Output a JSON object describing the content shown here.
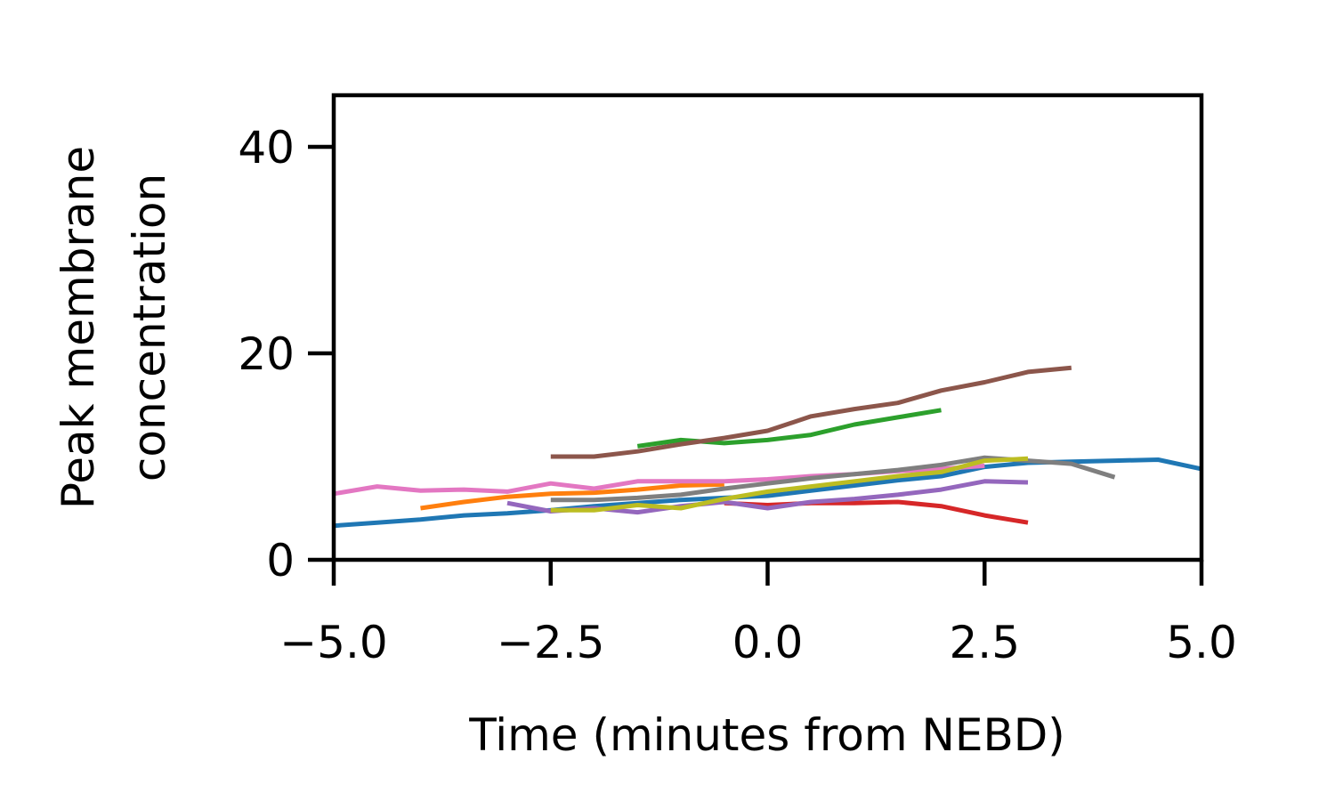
{
  "chart_data": {
    "type": "line",
    "title": "",
    "xlabel": "Time (minutes from NEBD)",
    "ylabel_lines": [
      "Peak membrane",
      "concentration"
    ],
    "xlim": [
      -5,
      5
    ],
    "ylim": [
      0,
      45
    ],
    "xticks": [
      -5,
      -2.5,
      0,
      2.5,
      5
    ],
    "xtick_labels": [
      "−5.0",
      "−2.5",
      "0.0",
      "2.5",
      "5.0"
    ],
    "yticks": [
      0,
      20,
      40
    ],
    "ytick_labels": [
      "0",
      "20",
      "40"
    ],
    "grid": false,
    "legend": "none",
    "series": [
      {
        "color": "#1f77b4",
        "x": [
          -5,
          -4.5,
          -4,
          -3.5,
          -3,
          -2.5,
          -2,
          -1.5,
          -1,
          -0.5,
          0,
          0.5,
          1,
          1.5,
          2,
          2.5,
          3,
          3.5,
          4,
          4.5,
          5
        ],
        "y": [
          3.3,
          3.6,
          3.9,
          4.3,
          4.5,
          4.8,
          5.2,
          5.5,
          5.8,
          6.0,
          6.2,
          6.7,
          7.2,
          7.7,
          8.1,
          9.0,
          9.4,
          9.5,
          9.6,
          9.7,
          8.8
        ]
      },
      {
        "color": "#ff7f0e",
        "x": [
          -4,
          -3.5,
          -3,
          -2.5,
          -2,
          -1.5,
          -1,
          -0.5
        ],
        "y": [
          5.0,
          5.6,
          6.1,
          6.4,
          6.5,
          6.8,
          7.2,
          7.3
        ]
      },
      {
        "color": "#2ca02c",
        "x": [
          -1.5,
          -1,
          -0.5,
          0,
          0.5,
          1,
          1.5,
          2
        ],
        "y": [
          11.0,
          11.6,
          11.3,
          11.6,
          12.1,
          13.1,
          13.8,
          14.5
        ]
      },
      {
        "color": "#d62728",
        "x": [
          -0.5,
          0,
          0.5,
          1,
          1.5,
          2,
          2.5,
          3
        ],
        "y": [
          5.5,
          5.3,
          5.5,
          5.5,
          5.6,
          5.2,
          4.3,
          3.6
        ]
      },
      {
        "color": "#9467bd",
        "x": [
          -3,
          -2.5,
          -2,
          -1.5,
          -1,
          -0.5,
          0,
          0.5,
          1,
          1.5,
          2,
          2.5,
          3
        ],
        "y": [
          5.5,
          4.7,
          5.0,
          4.6,
          5.2,
          5.6,
          5.0,
          5.6,
          5.9,
          6.3,
          6.8,
          7.6,
          7.5
        ]
      },
      {
        "color": "#8c564b",
        "x": [
          -2.5,
          -2,
          -1.5,
          -1,
          -0.5,
          0,
          0.5,
          1,
          1.5,
          2,
          2.5,
          3,
          3.5
        ],
        "y": [
          10.0,
          10.0,
          10.5,
          11.2,
          11.8,
          12.5,
          13.9,
          14.6,
          15.2,
          16.4,
          17.2,
          18.2,
          18.6
        ]
      },
      {
        "color": "#e377c2",
        "x": [
          -5,
          -4.5,
          -4,
          -3.5,
          -3,
          -2.5,
          -2,
          -1.5,
          -1,
          -0.5,
          0,
          0.5,
          1,
          1.5,
          2,
          2.5
        ],
        "y": [
          6.4,
          7.1,
          6.7,
          6.8,
          6.6,
          7.4,
          6.9,
          7.6,
          7.6,
          7.6,
          7.8,
          8.1,
          8.3,
          8.6,
          8.8,
          9.1
        ]
      },
      {
        "color": "#7f7f7f",
        "x": [
          -2.5,
          -2,
          -1.5,
          -1,
          -0.5,
          0,
          0.5,
          1,
          1.5,
          2,
          2.5,
          3,
          3.5,
          4
        ],
        "y": [
          5.8,
          5.8,
          6.0,
          6.3,
          6.9,
          7.4,
          7.9,
          8.3,
          8.7,
          9.2,
          9.9,
          9.6,
          9.3,
          8.0
        ]
      },
      {
        "color": "#bcbd22",
        "x": [
          -2.5,
          -2,
          -1.5,
          -1,
          -0.5,
          0,
          0.5,
          1,
          1.5,
          2,
          2.5,
          3
        ],
        "y": [
          4.8,
          4.8,
          5.3,
          5.0,
          5.9,
          6.6,
          7.1,
          7.6,
          8.1,
          8.5,
          9.6,
          9.8
        ]
      }
    ]
  }
}
